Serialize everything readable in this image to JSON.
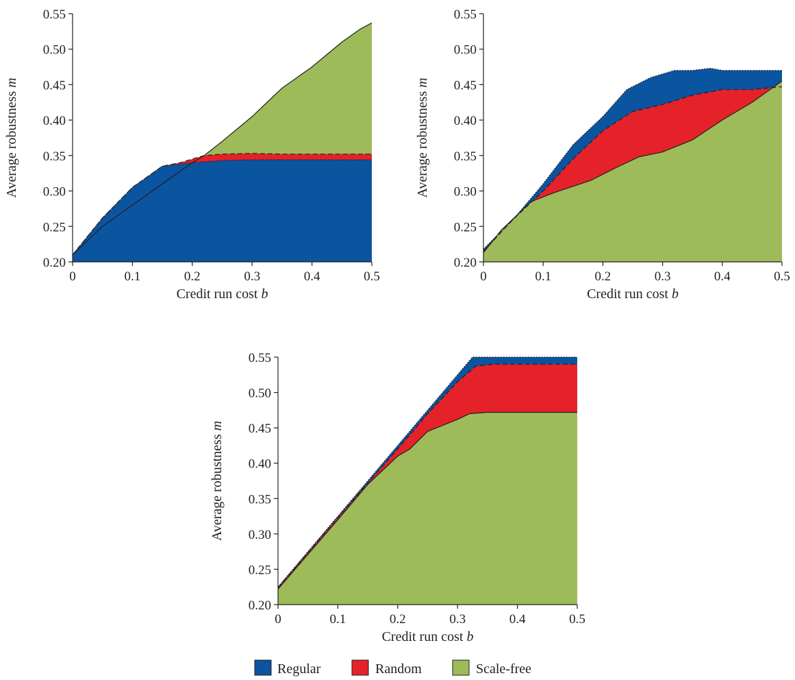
{
  "colors": {
    "regular": "#0b54a0",
    "random": "#e52229",
    "scale_free": "#9dbb59",
    "outline": "#231f20"
  },
  "legend": {
    "items": [
      {
        "key": "regular",
        "label": "Regular"
      },
      {
        "key": "random",
        "label": "Random"
      },
      {
        "key": "scale_free",
        "label": "Scale-free"
      }
    ]
  },
  "chart_data": [
    {
      "type": "area",
      "xlabel_text": "Credit run cost ",
      "xlabel_var": "b",
      "ylabel_text": "Average robustness ",
      "ylabel_var": "m",
      "xlim": [
        0,
        0.5
      ],
      "ylim": [
        0.2,
        0.55
      ],
      "xticks": [
        0,
        0.1,
        0.2,
        0.3,
        0.4,
        0.5
      ],
      "xtick_labels": [
        "0",
        "0.1",
        "0.2",
        "0.3",
        "0.4",
        "0.5"
      ],
      "yticks": [
        0.2,
        0.25,
        0.3,
        0.35,
        0.4,
        0.45,
        0.5,
        0.55
      ],
      "ytick_labels": [
        "0.20",
        "0.25",
        "0.30",
        "0.35",
        "0.40",
        "0.45",
        "0.50",
        "0.55"
      ],
      "series": [
        {
          "name": "Scale-free",
          "key": "scale_free",
          "x": [
            0,
            0.05,
            0.1,
            0.15,
            0.2,
            0.22,
            0.25,
            0.3,
            0.35,
            0.4,
            0.45,
            0.48,
            0.5
          ],
          "y": [
            0.21,
            0.25,
            0.28,
            0.31,
            0.34,
            0.35,
            0.37,
            0.405,
            0.445,
            0.475,
            0.51,
            0.528,
            0.537
          ]
        },
        {
          "name": "Random",
          "key": "random",
          "x": [
            0,
            0.05,
            0.1,
            0.15,
            0.18,
            0.2,
            0.22,
            0.25,
            0.3,
            0.35,
            0.4,
            0.45,
            0.5
          ],
          "y": [
            0.21,
            0.262,
            0.305,
            0.335,
            0.34,
            0.345,
            0.35,
            0.352,
            0.353,
            0.352,
            0.352,
            0.352,
            0.352
          ]
        },
        {
          "name": "Regular",
          "key": "regular",
          "x": [
            0,
            0.05,
            0.1,
            0.15,
            0.18,
            0.2,
            0.25,
            0.3,
            0.35,
            0.4,
            0.45,
            0.5
          ],
          "y": [
            0.21,
            0.262,
            0.305,
            0.335,
            0.338,
            0.34,
            0.343,
            0.344,
            0.344,
            0.344,
            0.344,
            0.344
          ]
        }
      ]
    },
    {
      "type": "area",
      "xlabel_text": "Credit run cost ",
      "xlabel_var": "b",
      "ylabel_text": "Average robustness ",
      "ylabel_var": "m",
      "xlim": [
        0,
        0.5
      ],
      "ylim": [
        0.2,
        0.55
      ],
      "xticks": [
        0,
        0.1,
        0.2,
        0.3,
        0.4,
        0.5
      ],
      "xtick_labels": [
        "0",
        "0.1",
        "0.2",
        "0.3",
        "0.4",
        "0.5"
      ],
      "yticks": [
        0.2,
        0.25,
        0.3,
        0.35,
        0.4,
        0.45,
        0.5,
        0.55
      ],
      "ytick_labels": [
        "0.20",
        "0.25",
        "0.30",
        "0.35",
        "0.40",
        "0.45",
        "0.50",
        "0.55"
      ],
      "series": [
        {
          "name": "Regular",
          "key": "regular",
          "x": [
            0,
            0.05,
            0.1,
            0.15,
            0.2,
            0.24,
            0.28,
            0.32,
            0.35,
            0.38,
            0.4,
            0.45,
            0.5
          ],
          "y": [
            0.218,
            0.26,
            0.31,
            0.365,
            0.405,
            0.443,
            0.46,
            0.47,
            0.47,
            0.473,
            0.47,
            0.47,
            0.47
          ]
        },
        {
          "name": "Random",
          "key": "random",
          "x": [
            0,
            0.05,
            0.1,
            0.15,
            0.2,
            0.25,
            0.3,
            0.35,
            0.4,
            0.45,
            0.5
          ],
          "y": [
            0.215,
            0.26,
            0.3,
            0.345,
            0.385,
            0.412,
            0.422,
            0.435,
            0.443,
            0.443,
            0.447
          ]
        },
        {
          "name": "Scale-free",
          "key": "scale_free",
          "x": [
            0,
            0.03,
            0.08,
            0.12,
            0.18,
            0.22,
            0.26,
            0.3,
            0.35,
            0.4,
            0.45,
            0.5
          ],
          "y": [
            0.213,
            0.245,
            0.285,
            0.298,
            0.315,
            0.332,
            0.348,
            0.355,
            0.372,
            0.4,
            0.425,
            0.455
          ]
        }
      ]
    },
    {
      "type": "area",
      "xlabel_text": "Credit run cost ",
      "xlabel_var": "b",
      "ylabel_text": "Average robustness ",
      "ylabel_var": "m",
      "xlim": [
        0,
        0.5
      ],
      "ylim": [
        0.2,
        0.55
      ],
      "xticks": [
        0,
        0.1,
        0.2,
        0.3,
        0.4,
        0.5
      ],
      "xtick_labels": [
        "0",
        "0.1",
        "0.2",
        "0.3",
        "0.4",
        "0.5"
      ],
      "yticks": [
        0.2,
        0.25,
        0.3,
        0.35,
        0.4,
        0.45,
        0.5,
        0.55
      ],
      "ytick_labels": [
        "0.20",
        "0.25",
        "0.30",
        "0.35",
        "0.40",
        "0.45",
        "0.50",
        "0.55"
      ],
      "series": [
        {
          "name": "Regular",
          "key": "regular",
          "x": [
            0,
            0.1,
            0.2,
            0.3,
            0.325,
            0.35,
            0.4,
            0.45,
            0.5
          ],
          "y": [
            0.225,
            0.325,
            0.425,
            0.525,
            0.55,
            0.55,
            0.55,
            0.55,
            0.55
          ]
        },
        {
          "name": "Random",
          "key": "random",
          "x": [
            0,
            0.1,
            0.15,
            0.2,
            0.25,
            0.3,
            0.33,
            0.36,
            0.4,
            0.45,
            0.5
          ],
          "y": [
            0.224,
            0.323,
            0.372,
            0.42,
            0.47,
            0.515,
            0.537,
            0.54,
            0.54,
            0.54,
            0.54
          ]
        },
        {
          "name": "Scale-free",
          "key": "scale_free",
          "x": [
            0,
            0.1,
            0.15,
            0.2,
            0.22,
            0.25,
            0.3,
            0.32,
            0.35,
            0.38,
            0.4,
            0.45,
            0.5
          ],
          "y": [
            0.222,
            0.32,
            0.37,
            0.41,
            0.42,
            0.445,
            0.462,
            0.47,
            0.472,
            0.472,
            0.472,
            0.472,
            0.472
          ]
        }
      ]
    }
  ]
}
